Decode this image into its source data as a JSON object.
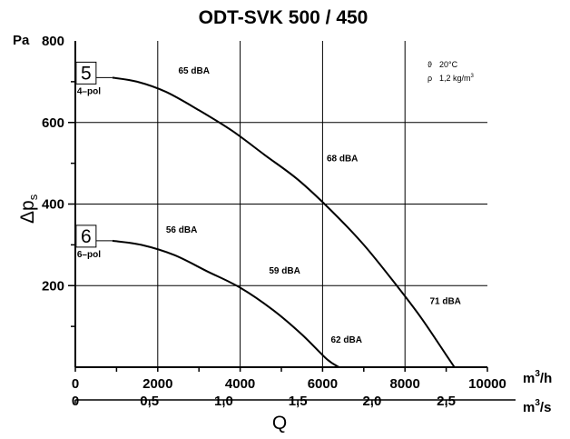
{
  "chart_data": {
    "type": "line",
    "title": "ODT-SVK 500 / 450",
    "ylabel": "Δp",
    "ylabel_sub": "s",
    "y_unit": "Pa",
    "xlabel": "Q",
    "x_unit_primary": "m",
    "x_unit_primary_sup": "3",
    "x_unit_primary_tail": "/h",
    "x_unit_secondary": "m",
    "x_unit_secondary_sup": "3",
    "x_unit_secondary_tail": "/s",
    "xlim": [
      0,
      10000
    ],
    "ylim": [
      0,
      800
    ],
    "grid": true,
    "x_ticks": [
      {
        "value": 0,
        "label": "0"
      },
      {
        "value": 2000,
        "label": "2000"
      },
      {
        "value": 4000,
        "label": "4000"
      },
      {
        "value": 6000,
        "label": "6000"
      },
      {
        "value": 8000,
        "label": "8000"
      },
      {
        "value": 10000,
        "label": "10000"
      }
    ],
    "x_ticks_secondary": [
      {
        "value": 0,
        "label": "0"
      },
      {
        "value": 1800,
        "label": "0,5"
      },
      {
        "value": 3600,
        "label": "1,0"
      },
      {
        "value": 5400,
        "label": "1,5"
      },
      {
        "value": 7200,
        "label": "2,0"
      },
      {
        "value": 9000,
        "label": "2,5"
      }
    ],
    "y_ticks": [
      {
        "value": 200,
        "label": "200"
      },
      {
        "value": 400,
        "label": "400"
      },
      {
        "value": 600,
        "label": "600"
      },
      {
        "value": 800,
        "label": "800"
      }
    ],
    "conditions": {
      "temp_symbol": "ϑ",
      "temp": "20°C",
      "density_symbol": "ρ",
      "density": "1,2 kg/m",
      "density_sup": "3"
    },
    "series": [
      {
        "name": "5",
        "sub_label": "4–pol",
        "x": [
          900,
          1500,
          2200,
          3000,
          3800,
          4600,
          5400,
          6200,
          7000,
          7800,
          8400,
          9000,
          9200
        ],
        "y": [
          710,
          700,
          675,
          630,
          580,
          520,
          460,
          385,
          300,
          200,
          120,
          30,
          0
        ],
        "annotations": [
          {
            "x": 2500,
            "y": 720,
            "text": "65 dBA"
          },
          {
            "x": 6100,
            "y": 505,
            "text": "68 dBA"
          },
          {
            "x": 8600,
            "y": 155,
            "text": "71 dBA"
          }
        ]
      },
      {
        "name": "6",
        "sub_label": "6–pol",
        "x": [
          900,
          1600,
          2400,
          3200,
          4000,
          4800,
          5500,
          6100,
          6400
        ],
        "y": [
          310,
          300,
          275,
          235,
          195,
          140,
          80,
          20,
          0
        ],
        "annotations": [
          {
            "x": 2200,
            "y": 330,
            "text": "56 dBA"
          },
          {
            "x": 4700,
            "y": 230,
            "text": "59 dBA"
          },
          {
            "x": 6200,
            "y": 60,
            "text": "62 dBA"
          }
        ]
      }
    ]
  }
}
